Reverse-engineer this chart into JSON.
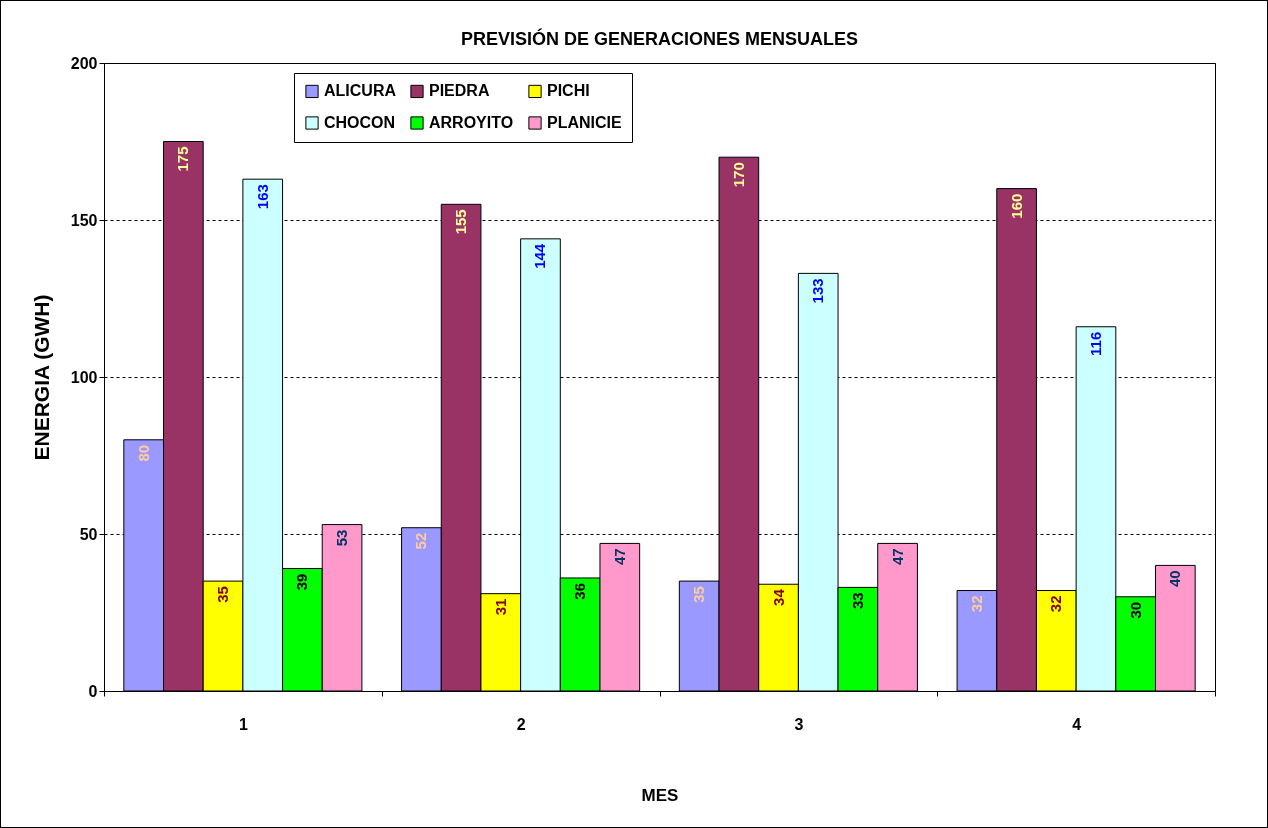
{
  "chart_data": {
    "type": "bar",
    "title": "PREVISIÓN DE GENERACIONES MENSUALES",
    "xlabel": "MES",
    "ylabel": "ENERGIA (GWH)",
    "categories": [
      "1",
      "2",
      "3",
      "4"
    ],
    "series": [
      {
        "name": "ALICURA",
        "color": "#9999ff",
        "values": [
          80,
          52,
          35,
          32
        ]
      },
      {
        "name": "PIEDRA",
        "color": "#993366",
        "values": [
          175,
          155,
          170,
          160
        ]
      },
      {
        "name": "PICHI",
        "color": "#ffff00",
        "values": [
          35,
          31,
          34,
          32
        ]
      },
      {
        "name": "CHOCON",
        "color": "#ccffff",
        "values": [
          163,
          144,
          133,
          116
        ]
      },
      {
        "name": "ARROYITO",
        "color": "#00ff00",
        "values": [
          39,
          36,
          33,
          30
        ]
      },
      {
        "name": "PLANICIE",
        "color": "#ff99cc",
        "values": [
          53,
          47,
          47,
          40
        ]
      }
    ],
    "ylim": [
      0,
      200
    ],
    "yticks": [
      0,
      50,
      100,
      150,
      200
    ],
    "grid": "y",
    "legend": "top left",
    "data_labels": true
  }
}
